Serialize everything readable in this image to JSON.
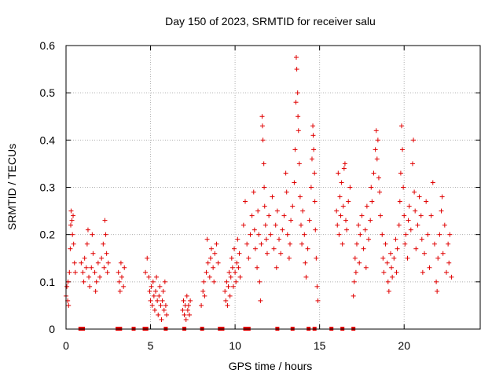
{
  "chart_data": {
    "type": "scatter",
    "title": "Day 150 of 2023, SRMTID for receiver salu",
    "xlabel": "GPS time / hours",
    "ylabel": "SRMTID / TECUs",
    "xlim": [
      0,
      24.5
    ],
    "ylim": [
      0,
      0.6
    ],
    "xticks": [
      0,
      5,
      10,
      15,
      20
    ],
    "yticks": [
      0,
      0.1,
      0.2,
      0.3,
      0.4,
      0.5,
      0.6
    ],
    "grid": true,
    "marker": "+",
    "color": "#e00000",
    "series": [
      {
        "name": "SRMTID",
        "points": [
          [
            0.0,
            0.07
          ],
          [
            0.05,
            0.09
          ],
          [
            0.1,
            0.06
          ],
          [
            0.12,
            0.1
          ],
          [
            0.15,
            0.05
          ],
          [
            0.2,
            0.12
          ],
          [
            0.25,
            0.17
          ],
          [
            0.28,
            0.22
          ],
          [
            0.3,
            0.25
          ],
          [
            0.35,
            0.23
          ],
          [
            0.38,
            0.2
          ],
          [
            0.42,
            0.24
          ],
          [
            0.45,
            0.18
          ],
          [
            0.5,
            0.14
          ],
          [
            0.55,
            0.12
          ],
          [
            0.9,
            0.14
          ],
          [
            1.0,
            0.12
          ],
          [
            1.05,
            0.1
          ],
          [
            1.1,
            0.15
          ],
          [
            1.2,
            0.13
          ],
          [
            1.25,
            0.18
          ],
          [
            1.3,
            0.21
          ],
          [
            1.35,
            0.11
          ],
          [
            1.4,
            0.09
          ],
          [
            1.5,
            0.13
          ],
          [
            1.55,
            0.2
          ],
          [
            1.6,
            0.16
          ],
          [
            1.7,
            0.12
          ],
          [
            1.75,
            0.08
          ],
          [
            1.8,
            0.1
          ],
          [
            1.9,
            0.14
          ],
          [
            2.0,
            0.11
          ],
          [
            2.1,
            0.15
          ],
          [
            2.2,
            0.18
          ],
          [
            2.25,
            0.13
          ],
          [
            2.3,
            0.23
          ],
          [
            2.35,
            0.2
          ],
          [
            2.4,
            0.16
          ],
          [
            2.45,
            0.12
          ],
          [
            2.5,
            0.14
          ],
          [
            3.1,
            0.12
          ],
          [
            3.15,
            0.1
          ],
          [
            3.2,
            0.08
          ],
          [
            3.25,
            0.14
          ],
          [
            3.3,
            0.11
          ],
          [
            3.4,
            0.09
          ],
          [
            3.45,
            0.13
          ],
          [
            4.7,
            0.12
          ],
          [
            4.8,
            0.15
          ],
          [
            4.9,
            0.11
          ],
          [
            4.95,
            0.08
          ],
          [
            5.0,
            0.06
          ],
          [
            5.05,
            0.09
          ],
          [
            5.1,
            0.05
          ],
          [
            5.15,
            0.1
          ],
          [
            5.2,
            0.07
          ],
          [
            5.25,
            0.04
          ],
          [
            5.3,
            0.08
          ],
          [
            5.35,
            0.11
          ],
          [
            5.4,
            0.06
          ],
          [
            5.45,
            0.03
          ],
          [
            5.5,
            0.07
          ],
          [
            5.55,
            0.09
          ],
          [
            5.6,
            0.05
          ],
          [
            5.65,
            0.02
          ],
          [
            5.7,
            0.06
          ],
          [
            5.75,
            0.08
          ],
          [
            5.8,
            0.04
          ],
          [
            5.85,
            0.1
          ],
          [
            5.9,
            0.05
          ],
          [
            5.95,
            0.03
          ],
          [
            6.9,
            0.04
          ],
          [
            6.95,
            0.06
          ],
          [
            7.0,
            0.03
          ],
          [
            7.05,
            0.05
          ],
          [
            7.1,
            0.02
          ],
          [
            7.15,
            0.07
          ],
          [
            7.2,
            0.04
          ],
          [
            7.25,
            0.05
          ],
          [
            7.3,
            0.03
          ],
          [
            7.35,
            0.06
          ],
          [
            8.0,
            0.05
          ],
          [
            8.1,
            0.08
          ],
          [
            8.15,
            0.1
          ],
          [
            8.2,
            0.07
          ],
          [
            8.3,
            0.12
          ],
          [
            8.35,
            0.19
          ],
          [
            8.4,
            0.14
          ],
          [
            8.5,
            0.11
          ],
          [
            8.55,
            0.15
          ],
          [
            8.6,
            0.17
          ],
          [
            8.7,
            0.13
          ],
          [
            8.75,
            0.1
          ],
          [
            8.8,
            0.16
          ],
          [
            8.9,
            0.18
          ],
          [
            9.0,
            0.14
          ],
          [
            9.4,
            0.08
          ],
          [
            9.45,
            0.06
          ],
          [
            9.5,
            0.1
          ],
          [
            9.55,
            0.05
          ],
          [
            9.6,
            0.09
          ],
          [
            9.65,
            0.12
          ],
          [
            9.7,
            0.07
          ],
          [
            9.75,
            0.11
          ],
          [
            9.8,
            0.15
          ],
          [
            9.85,
            0.13
          ],
          [
            9.9,
            0.09
          ],
          [
            9.95,
            0.17
          ],
          [
            10.0,
            0.12
          ],
          [
            10.05,
            0.1
          ],
          [
            10.1,
            0.14
          ],
          [
            10.15,
            0.19
          ],
          [
            10.2,
            0.13
          ],
          [
            10.25,
            0.16
          ],
          [
            10.3,
            0.11
          ],
          [
            10.5,
            0.22
          ],
          [
            10.6,
            0.27
          ],
          [
            10.7,
            0.18
          ],
          [
            10.8,
            0.15
          ],
          [
            10.9,
            0.2
          ],
          [
            11.0,
            0.24
          ],
          [
            11.1,
            0.29
          ],
          [
            11.15,
            0.21
          ],
          [
            11.2,
            0.17
          ],
          [
            11.3,
            0.13
          ],
          [
            11.35,
            0.25
          ],
          [
            11.4,
            0.2
          ],
          [
            11.45,
            0.1
          ],
          [
            11.5,
            0.06
          ],
          [
            11.55,
            0.18
          ],
          [
            11.6,
            0.45
          ],
          [
            11.62,
            0.43
          ],
          [
            11.65,
            0.4
          ],
          [
            11.7,
            0.35
          ],
          [
            11.72,
            0.3
          ],
          [
            11.75,
            0.26
          ],
          [
            11.8,
            0.22
          ],
          [
            11.85,
            0.19
          ],
          [
            11.9,
            0.16
          ],
          [
            12.0,
            0.24
          ],
          [
            12.1,
            0.2
          ],
          [
            12.2,
            0.28
          ],
          [
            12.3,
            0.17
          ],
          [
            12.4,
            0.22
          ],
          [
            12.45,
            0.13
          ],
          [
            12.5,
            0.25
          ],
          [
            12.6,
            0.19
          ],
          [
            12.7,
            0.16
          ],
          [
            12.8,
            0.21
          ],
          [
            12.9,
            0.24
          ],
          [
            13.0,
            0.33
          ],
          [
            13.05,
            0.29
          ],
          [
            13.1,
            0.2
          ],
          [
            13.2,
            0.15
          ],
          [
            13.25,
            0.18
          ],
          [
            13.3,
            0.23
          ],
          [
            13.4,
            0.26
          ],
          [
            13.5,
            0.31
          ],
          [
            13.55,
            0.38
          ],
          [
            13.6,
            0.48
          ],
          [
            13.62,
            0.575
          ],
          [
            13.65,
            0.55
          ],
          [
            13.7,
            0.5
          ],
          [
            13.72,
            0.45
          ],
          [
            13.75,
            0.42
          ],
          [
            13.8,
            0.35
          ],
          [
            13.85,
            0.28
          ],
          [
            13.9,
            0.22
          ],
          [
            13.95,
            0.18
          ],
          [
            14.0,
            0.25
          ],
          [
            14.1,
            0.2
          ],
          [
            14.15,
            0.14
          ],
          [
            14.2,
            0.11
          ],
          [
            14.3,
            0.17
          ],
          [
            14.4,
            0.23
          ],
          [
            14.5,
            0.3
          ],
          [
            14.55,
            0.36
          ],
          [
            14.6,
            0.43
          ],
          [
            14.62,
            0.41
          ],
          [
            14.65,
            0.38
          ],
          [
            14.7,
            0.33
          ],
          [
            14.72,
            0.27
          ],
          [
            14.75,
            0.21
          ],
          [
            14.8,
            0.15
          ],
          [
            14.85,
            0.09
          ],
          [
            14.9,
            0.06
          ],
          [
            16.0,
            0.25
          ],
          [
            16.05,
            0.22
          ],
          [
            16.1,
            0.33
          ],
          [
            16.15,
            0.2
          ],
          [
            16.2,
            0.28
          ],
          [
            16.25,
            0.24
          ],
          [
            16.3,
            0.31
          ],
          [
            16.35,
            0.18
          ],
          [
            16.4,
            0.26
          ],
          [
            16.45,
            0.34
          ],
          [
            16.5,
            0.35
          ],
          [
            16.55,
            0.23
          ],
          [
            16.6,
            0.21
          ],
          [
            16.7,
            0.27
          ],
          [
            16.8,
            0.3
          ],
          [
            17.0,
            0.07
          ],
          [
            17.05,
            0.1
          ],
          [
            17.1,
            0.15
          ],
          [
            17.15,
            0.12
          ],
          [
            17.2,
            0.18
          ],
          [
            17.3,
            0.22
          ],
          [
            17.35,
            0.14
          ],
          [
            17.4,
            0.2
          ],
          [
            17.5,
            0.24
          ],
          [
            17.6,
            0.17
          ],
          [
            17.7,
            0.21
          ],
          [
            17.75,
            0.13
          ],
          [
            17.8,
            0.26
          ],
          [
            17.9,
            0.19
          ],
          [
            18.0,
            0.23
          ],
          [
            18.05,
            0.3
          ],
          [
            18.1,
            0.27
          ],
          [
            18.2,
            0.33
          ],
          [
            18.3,
            0.38
          ],
          [
            18.35,
            0.42
          ],
          [
            18.4,
            0.36
          ],
          [
            18.45,
            0.4
          ],
          [
            18.5,
            0.32
          ],
          [
            18.55,
            0.29
          ],
          [
            18.6,
            0.24
          ],
          [
            18.7,
            0.2
          ],
          [
            18.75,
            0.15
          ],
          [
            18.8,
            0.12
          ],
          [
            18.9,
            0.18
          ],
          [
            19.0,
            0.14
          ],
          [
            19.05,
            0.1
          ],
          [
            19.1,
            0.08
          ],
          [
            19.2,
            0.16
          ],
          [
            19.25,
            0.13
          ],
          [
            19.3,
            0.11
          ],
          [
            19.4,
            0.15
          ],
          [
            19.5,
            0.19
          ],
          [
            19.55,
            0.12
          ],
          [
            19.6,
            0.17
          ],
          [
            19.7,
            0.22
          ],
          [
            19.75,
            0.27
          ],
          [
            19.8,
            0.33
          ],
          [
            19.85,
            0.43
          ],
          [
            19.9,
            0.38
          ],
          [
            19.95,
            0.3
          ],
          [
            20.0,
            0.24
          ],
          [
            20.05,
            0.18
          ],
          [
            20.1,
            0.2
          ],
          [
            20.2,
            0.15
          ],
          [
            20.25,
            0.23
          ],
          [
            20.3,
            0.26
          ],
          [
            20.4,
            0.21
          ],
          [
            20.5,
            0.35
          ],
          [
            20.55,
            0.4
          ],
          [
            20.6,
            0.29
          ],
          [
            20.65,
            0.25
          ],
          [
            20.7,
            0.17
          ],
          [
            20.8,
            0.22
          ],
          [
            20.9,
            0.28
          ],
          [
            21.0,
            0.24
          ],
          [
            21.05,
            0.19
          ],
          [
            21.1,
            0.12
          ],
          [
            21.2,
            0.16
          ],
          [
            21.3,
            0.27
          ],
          [
            21.4,
            0.2
          ],
          [
            21.5,
            0.13
          ],
          [
            21.6,
            0.24
          ],
          [
            21.7,
            0.31
          ],
          [
            21.8,
            0.18
          ],
          [
            21.9,
            0.1
          ],
          [
            21.95,
            0.08
          ],
          [
            22.0,
            0.15
          ],
          [
            22.1,
            0.2
          ],
          [
            22.2,
            0.25
          ],
          [
            22.25,
            0.28
          ],
          [
            22.3,
            0.16
          ],
          [
            22.4,
            0.22
          ],
          [
            22.5,
            0.12
          ],
          [
            22.6,
            0.18
          ],
          [
            22.65,
            0.14
          ],
          [
            22.7,
            0.2
          ],
          [
            22.8,
            0.11
          ]
        ]
      },
      {
        "name": "gaps",
        "points": [
          [
            0.85,
            0
          ],
          [
            1.0,
            0
          ],
          [
            3.05,
            0
          ],
          [
            3.2,
            0
          ],
          [
            4.0,
            0
          ],
          [
            4.65,
            0
          ],
          [
            4.75,
            0
          ],
          [
            5.9,
            0
          ],
          [
            7.0,
            0
          ],
          [
            8.05,
            0
          ],
          [
            9.1,
            0
          ],
          [
            9.15,
            0
          ],
          [
            9.25,
            0
          ],
          [
            10.6,
            0
          ],
          [
            10.8,
            0
          ],
          [
            12.5,
            0
          ],
          [
            13.4,
            0
          ],
          [
            14.35,
            0
          ],
          [
            14.7,
            0
          ],
          [
            15.7,
            0
          ],
          [
            16.35,
            0
          ],
          [
            17.0,
            0
          ]
        ]
      }
    ]
  }
}
